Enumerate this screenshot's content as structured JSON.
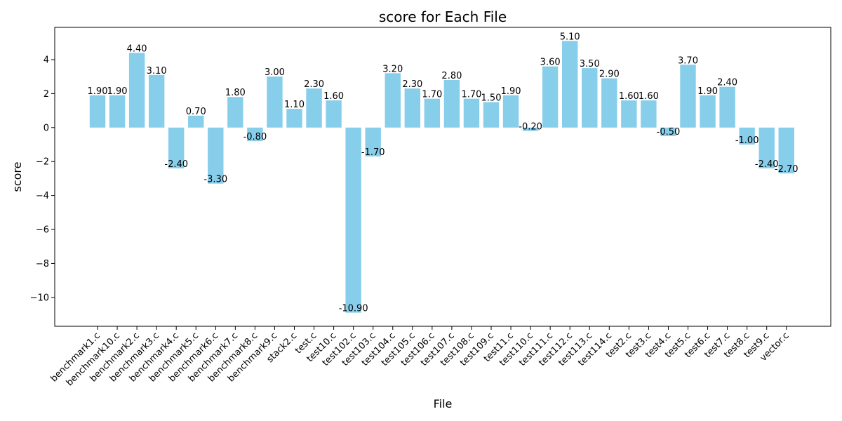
{
  "chart_data": {
    "type": "bar",
    "title": "score for Each File",
    "xlabel": "File",
    "ylabel": "score",
    "ylim": [
      -11.7,
      5.9
    ],
    "yticks": [
      -10,
      -8,
      -6,
      -4,
      -2,
      0,
      2,
      4
    ],
    "bar_color": "#87CEEB",
    "grid": false,
    "categories": [
      "benchmark1.c",
      "benchmark10.c",
      "benchmark2.c",
      "benchmark3.c",
      "benchmark4.c",
      "benchmark5.c",
      "benchmark6.c",
      "benchmark7.c",
      "benchmark8.c",
      "benchmark9.c",
      "stack2.c",
      "test.c",
      "test10.c",
      "test102.c",
      "test103.c",
      "test104.c",
      "test105.c",
      "test106.c",
      "test107.c",
      "test108.c",
      "test109.c",
      "test11.c",
      "test110.c",
      "test111.c",
      "test112.c",
      "test113.c",
      "test114.c",
      "test2.c",
      "test3.c",
      "test4.c",
      "test5.c",
      "test6.c",
      "test7.c",
      "test8.c",
      "test9.c",
      "vector.c"
    ],
    "values": [
      1.9,
      1.9,
      4.4,
      3.1,
      -2.4,
      0.7,
      -3.3,
      1.8,
      -0.8,
      3.0,
      1.1,
      2.3,
      1.6,
      -10.9,
      -1.7,
      3.2,
      2.3,
      1.7,
      2.8,
      1.7,
      1.5,
      1.9,
      -0.2,
      3.6,
      5.1,
      3.5,
      2.9,
      1.6,
      1.6,
      -0.5,
      3.7,
      1.9,
      2.4,
      -1.0,
      -2.4,
      -2.7
    ],
    "value_labels": [
      "1.90",
      "1.90",
      "4.40",
      "3.10",
      "-2.40",
      "0.70",
      "-3.30",
      "1.80",
      "-0.80",
      "3.00",
      "1.10",
      "2.30",
      "1.60",
      "-10.90",
      "-1.70",
      "3.20",
      "2.30",
      "1.70",
      "2.80",
      "1.70",
      "1.50",
      "1.90",
      "-0.20",
      "3.60",
      "5.10",
      "3.50",
      "2.90",
      "1.60",
      "1.60",
      "-0.50",
      "3.70",
      "1.90",
      "2.40",
      "-1.00",
      "-2.40",
      "-2.70"
    ]
  }
}
